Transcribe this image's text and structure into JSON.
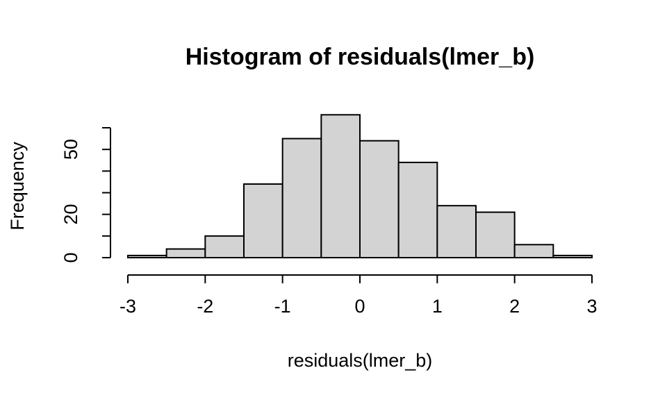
{
  "chart_data": {
    "type": "bar",
    "title": "Histogram of residuals(lmer_b)",
    "xlabel": "residuals(lmer_b)",
    "ylabel": "Frequency",
    "bin_edges": [
      -3,
      -2.5,
      -2,
      -1.5,
      -1,
      -0.5,
      0,
      0.5,
      1,
      1.5,
      2,
      2.5,
      3
    ],
    "values": [
      1,
      4,
      10,
      34,
      55,
      66,
      54,
      44,
      24,
      21,
      6,
      1
    ],
    "xlim": [
      -3,
      3
    ],
    "ylim": [
      0,
      60
    ],
    "x_ticks": [
      -3,
      -2,
      -1,
      0,
      1,
      2,
      3
    ],
    "x_tick_labels": [
      "-3",
      "-2",
      "-1",
      "0",
      "1",
      "2",
      "3"
    ],
    "y_ticks": [
      0,
      10,
      20,
      30,
      40,
      50,
      60
    ],
    "y_tick_labels": [
      "0",
      "",
      "20",
      "",
      "",
      "50",
      ""
    ],
    "grid": false,
    "colors": {
      "bar_fill": "#d3d3d3",
      "bar_stroke": "#000000"
    }
  }
}
